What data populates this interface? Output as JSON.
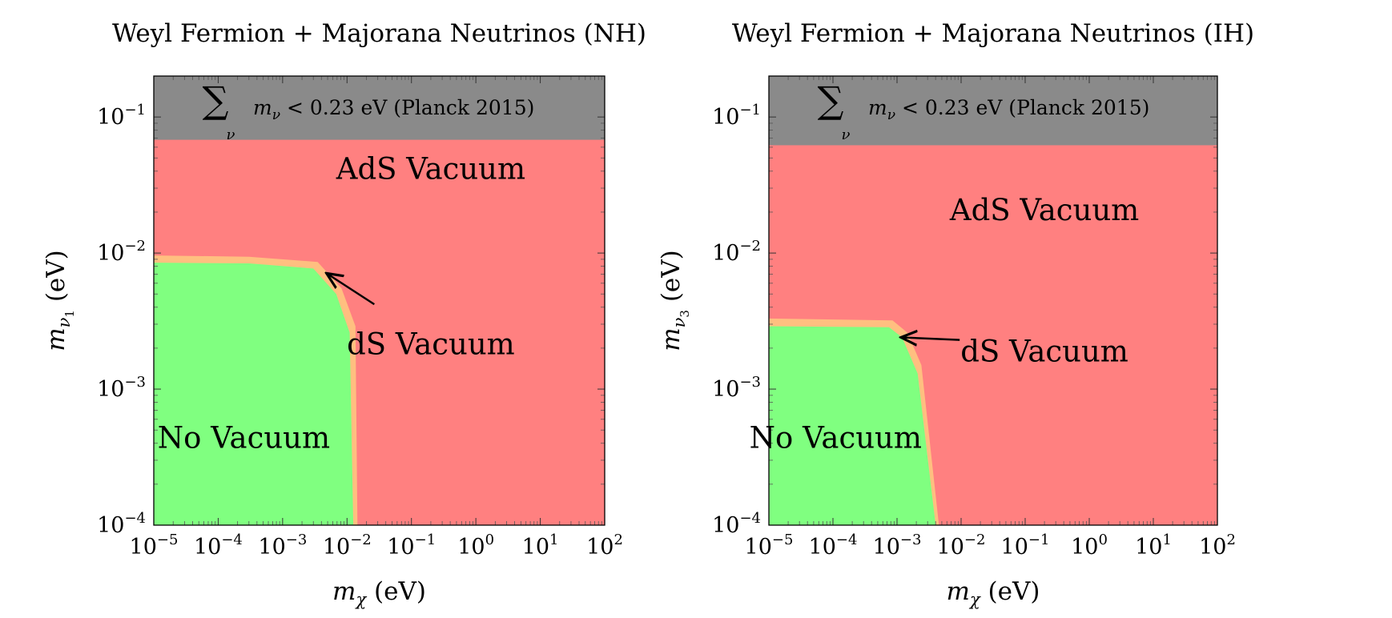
{
  "colors": {
    "ads": "#ff8080",
    "ds": "#ffbf80",
    "none": "#80ff80",
    "planck": "#8a8a8a"
  },
  "chart_data": [
    {
      "type": "area",
      "title": "Weyl Fermion + Majorana Neutrinos (NH)",
      "xlabel_main": "m",
      "xlabel_sub": "χ",
      "xlabel_unit": "(eV)",
      "ylabel_main": "m",
      "ylabel_sub": "ν",
      "ylabel_subsub": "1",
      "ylabel_unit": "(eV)",
      "x_scale": "log",
      "y_scale": "log",
      "xlim": [
        1e-05,
        100
      ],
      "ylim": [
        0.0001,
        0.2
      ],
      "x_ticks": [
        {
          "value": 1e-05,
          "base": "10",
          "exp": "−5"
        },
        {
          "value": 0.0001,
          "base": "10",
          "exp": "−4"
        },
        {
          "value": 0.001,
          "base": "10",
          "exp": "−3"
        },
        {
          "value": 0.01,
          "base": "10",
          "exp": "−2"
        },
        {
          "value": 0.1,
          "base": "10",
          "exp": "−1"
        },
        {
          "value": 1,
          "base": "10",
          "exp": "0"
        },
        {
          "value": 10,
          "base": "10",
          "exp": "1"
        },
        {
          "value": 100,
          "base": "10",
          "exp": "2"
        }
      ],
      "y_ticks": [
        {
          "value": 0.0001,
          "base": "10",
          "exp": "−4"
        },
        {
          "value": 0.001,
          "base": "10",
          "exp": "−3"
        },
        {
          "value": 0.01,
          "base": "10",
          "exp": "−2"
        },
        {
          "value": 0.1,
          "base": "10",
          "exp": "−1"
        }
      ],
      "planck_threshold": 0.068,
      "planck_label_sum": "∑",
      "planck_label_sumsub": "ν",
      "planck_label_m": "m",
      "planck_label_msub": "ν",
      "planck_label_text": "< 0.23 eV (Planck 2015)",
      "ds_region": [
        [
          1e-05,
          0.0096
        ],
        [
          0.0003,
          0.0094
        ],
        [
          0.0035,
          0.0086
        ],
        [
          0.0082,
          0.0055
        ],
        [
          0.0135,
          0.0029
        ],
        [
          0.0145,
          0.0001
        ],
        [
          1e-05,
          0.0001
        ]
      ],
      "no_vacuum_region": [
        [
          1e-05,
          0.0085
        ],
        [
          0.0003,
          0.0084
        ],
        [
          0.003,
          0.0077
        ],
        [
          0.0068,
          0.005
        ],
        [
          0.011,
          0.0026
        ],
        [
          0.0125,
          0.0001
        ],
        [
          1e-05,
          0.0001
        ]
      ],
      "labels": [
        {
          "text": "AdS Vacuum",
          "x": 0.2,
          "y": 0.035
        },
        {
          "text": "dS Vacuum",
          "x": 0.2,
          "y": 0.0018
        },
        {
          "text": "No Vacuum",
          "x": 0.00025,
          "y": 0.00037
        }
      ],
      "arrow": {
        "from": [
          0.0265,
          0.0042
        ],
        "to": [
          0.0048,
          0.0071
        ]
      }
    },
    {
      "type": "area",
      "title": "Weyl Fermion + Majorana Neutrinos (IH)",
      "xlabel_main": "m",
      "xlabel_sub": "χ",
      "xlabel_unit": "(eV)",
      "ylabel_main": "m",
      "ylabel_sub": "ν",
      "ylabel_subsub": "3",
      "ylabel_unit": "(eV)",
      "x_scale": "log",
      "y_scale": "log",
      "xlim": [
        1e-05,
        100
      ],
      "ylim": [
        0.0001,
        0.2
      ],
      "x_ticks": [
        {
          "value": 1e-05,
          "base": "10",
          "exp": "−5"
        },
        {
          "value": 0.0001,
          "base": "10",
          "exp": "−4"
        },
        {
          "value": 0.001,
          "base": "10",
          "exp": "−3"
        },
        {
          "value": 0.01,
          "base": "10",
          "exp": "−2"
        },
        {
          "value": 0.1,
          "base": "10",
          "exp": "−1"
        },
        {
          "value": 1,
          "base": "10",
          "exp": "0"
        },
        {
          "value": 10,
          "base": "10",
          "exp": "1"
        },
        {
          "value": 100,
          "base": "10",
          "exp": "2"
        }
      ],
      "y_ticks": [
        {
          "value": 0.0001,
          "base": "10",
          "exp": "−4"
        },
        {
          "value": 0.001,
          "base": "10",
          "exp": "−3"
        },
        {
          "value": 0.01,
          "base": "10",
          "exp": "−2"
        },
        {
          "value": 0.1,
          "base": "10",
          "exp": "−1"
        }
      ],
      "planck_threshold": 0.062,
      "planck_label_sum": "∑",
      "planck_label_sumsub": "ν",
      "planck_label_m": "m",
      "planck_label_msub": "ν",
      "planck_label_text": "< 0.23 eV (Planck 2015)",
      "ds_region": [
        [
          1e-05,
          0.0033
        ],
        [
          0.00085,
          0.0032
        ],
        [
          0.00145,
          0.0026
        ],
        [
          0.0024,
          0.0015
        ],
        [
          0.0045,
          0.0001
        ],
        [
          1e-05,
          0.0001
        ]
      ],
      "no_vacuum_region": [
        [
          1e-05,
          0.0029
        ],
        [
          0.00075,
          0.00285
        ],
        [
          0.0012,
          0.0024
        ],
        [
          0.0021,
          0.0013
        ],
        [
          0.004,
          0.0001
        ],
        [
          1e-05,
          0.0001
        ]
      ],
      "labels": [
        {
          "text": "AdS Vacuum",
          "x": 0.2,
          "y": 0.0175
        },
        {
          "text": "dS Vacuum",
          "x": 0.2,
          "y": 0.0016
        },
        {
          "text": "No Vacuum",
          "x": 0.00011,
          "y": 0.00037
        }
      ],
      "arrow": {
        "from": [
          0.0095,
          0.0023
        ],
        "to": [
          0.00115,
          0.0024
        ]
      }
    }
  ]
}
